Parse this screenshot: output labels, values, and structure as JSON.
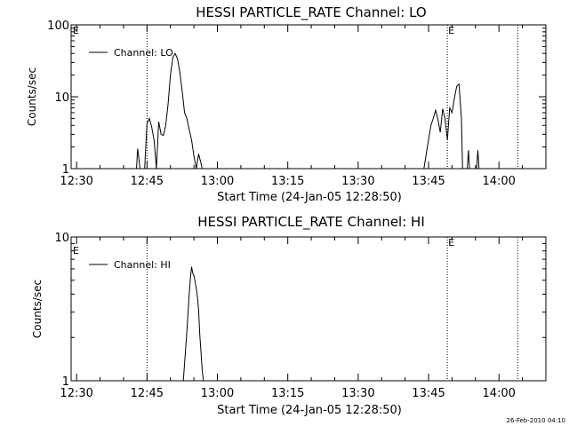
{
  "chart_data": [
    {
      "type": "line",
      "title": "HESSI PARTICLE_RATE Channel: LO",
      "xlabel": "Start Time (24-Jan-05 12:28:50)",
      "ylabel": "Counts/sec",
      "yscale": "log",
      "ylim": [
        1,
        100
      ],
      "xlim": [
        "12:28:50",
        "14:10:00"
      ],
      "x_ticks": [
        "12:30",
        "12:45",
        "13:00",
        "13:15",
        "13:30",
        "13:45",
        "14:00"
      ],
      "y_ticks": [
        "1",
        "10",
        "100"
      ],
      "legend": {
        "position": "top-left",
        "entries": [
          "Channel: LO"
        ]
      },
      "markers": [
        {
          "time": "12:45:00",
          "label": ""
        },
        {
          "time": "13:49:00",
          "label": "E"
        },
        {
          "time": "14:04:00",
          "label": ""
        }
      ],
      "series": [
        {
          "name": "Channel: LO",
          "x": [
            "12:42:45",
            "12:43:00",
            "12:43:15",
            "12:43:30",
            "12:44:30",
            "12:45:00",
            "12:45:30",
            "12:46:00",
            "12:46:30",
            "12:47:00",
            "12:47:30",
            "12:48:00",
            "12:48:30",
            "12:49:00",
            "12:49:30",
            "12:50:00",
            "12:50:30",
            "12:51:00",
            "12:51:30",
            "12:52:00",
            "12:52:30",
            "12:53:00",
            "12:53:30",
            "12:54:00",
            "12:54:30",
            "12:55:00",
            "12:55:30",
            "12:56:00",
            "12:56:30",
            "12:56:45",
            "13:44:00",
            "13:44:30",
            "13:45:00",
            "13:45:30",
            "13:46:00",
            "13:46:30",
            "13:47:00",
            "13:47:30",
            "13:48:00",
            "13:48:30",
            "13:49:00",
            "13:49:30",
            "13:50:00",
            "13:50:30",
            "13:51:00",
            "13:51:30",
            "13:52:00",
            "13:52:15",
            "13:53:15",
            "13:53:30",
            "13:53:45",
            "13:55:15",
            "13:55:30",
            "13:55:45"
          ],
          "values": [
            1,
            1.9,
            1.4,
            1,
            1,
            4.2,
            5,
            3.8,
            2.5,
            1,
            4.5,
            3,
            2.9,
            4,
            8,
            20,
            35,
            40,
            34,
            22,
            12,
            6,
            5,
            3.5,
            2.5,
            1.5,
            1,
            1.6,
            1.2,
            1,
            1,
            1.6,
            2.5,
            4,
            5,
            6.5,
            4.8,
            3.2,
            6.8,
            5,
            2.5,
            7,
            6,
            9.5,
            14,
            15,
            5,
            1,
            1,
            1.8,
            1,
            1,
            1.8,
            1
          ]
        }
      ]
    },
    {
      "type": "line",
      "title": "HESSI PARTICLE_RATE Channel: HI",
      "xlabel": "Start Time (24-Jan-05 12:28:50)",
      "ylabel": "Counts/sec",
      "yscale": "log",
      "ylim": [
        1,
        10
      ],
      "xlim": [
        "12:28:50",
        "14:10:00"
      ],
      "x_ticks": [
        "12:30",
        "12:45",
        "13:00",
        "13:15",
        "13:30",
        "13:45",
        "14:00"
      ],
      "y_ticks": [
        "1",
        "10"
      ],
      "legend": {
        "position": "top-left",
        "entries": [
          "Channel: HI"
        ]
      },
      "markers": [
        {
          "time": "12:45:00",
          "label": ""
        },
        {
          "time": "13:49:00",
          "label": "E"
        },
        {
          "time": "14:04:00",
          "label": ""
        }
      ],
      "series": [
        {
          "name": "Channel: HI",
          "x": [
            "12:52:45",
            "12:53:30",
            "12:54:00",
            "12:54:15",
            "12:54:30",
            "12:54:45",
            "12:55:00",
            "12:55:15",
            "12:55:30",
            "12:55:45",
            "12:56:00",
            "12:56:15",
            "12:56:45",
            "12:57:00"
          ],
          "values": [
            1,
            2.2,
            4,
            5.2,
            6.2,
            5.6,
            5.4,
            4.9,
            4.4,
            3.8,
            3.1,
            2.1,
            1.2,
            1
          ]
        }
      ]
    }
  ],
  "axis_left_marker_label": "E",
  "footer": {
    "timestamp": "26-Feb-2010 04:10"
  }
}
